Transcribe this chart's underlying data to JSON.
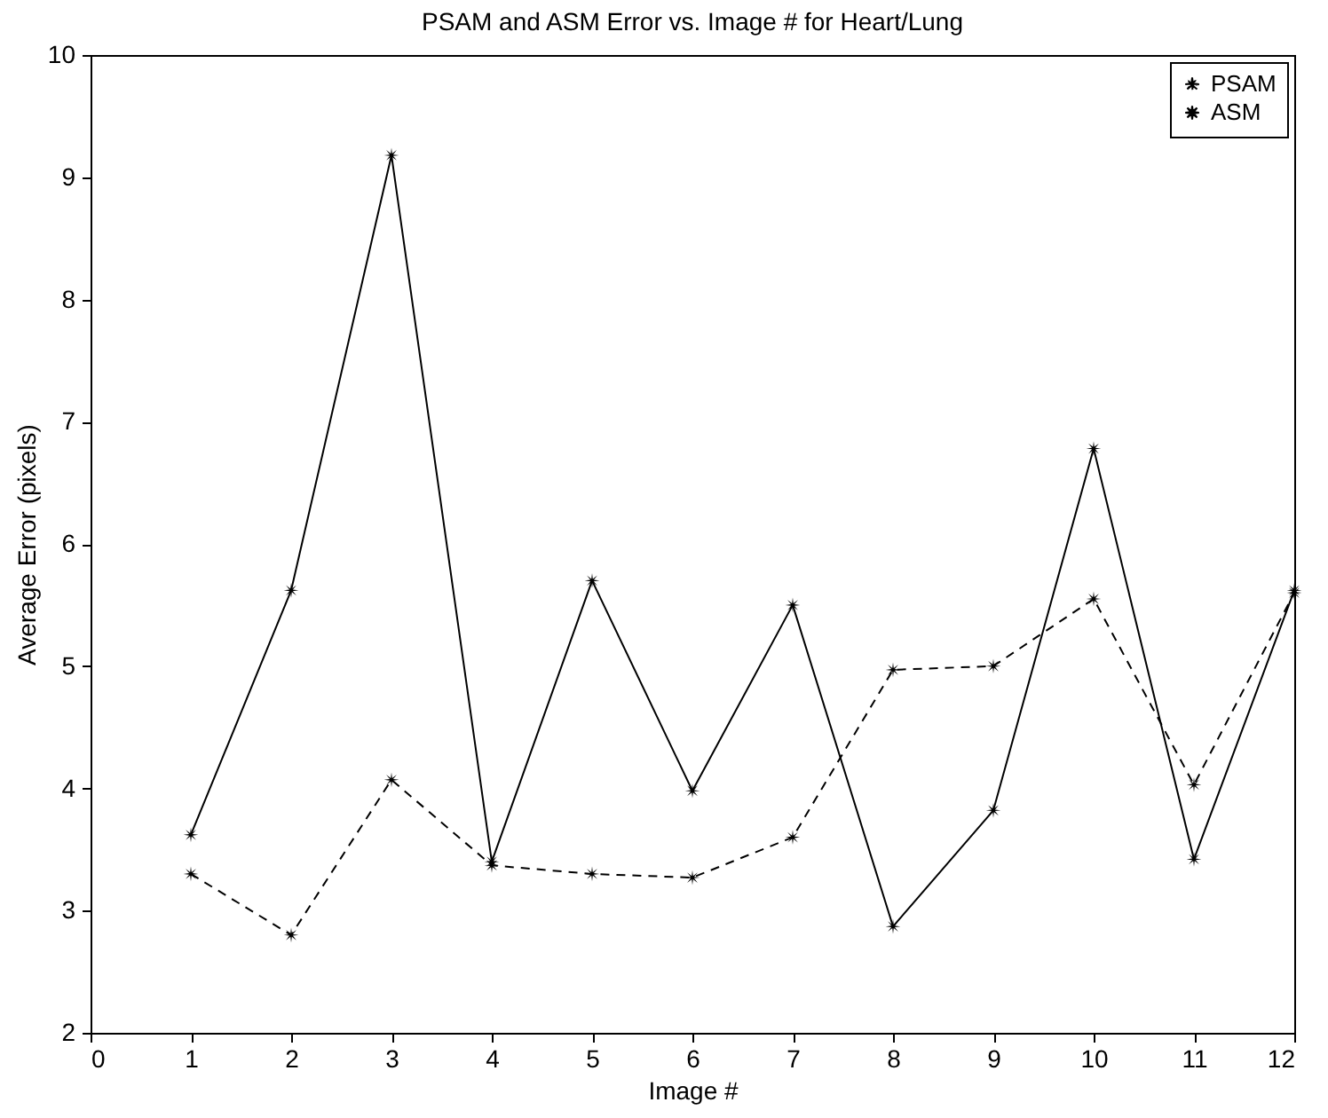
{
  "chart_data": {
    "type": "line",
    "title": "PSAM and ASM Error vs. Image # for Heart/Lung",
    "xlabel": "Image #",
    "ylabel": "Average Error (pixels)",
    "x": [
      1,
      2,
      3,
      4,
      5,
      6,
      7,
      8,
      9,
      10,
      11,
      12
    ],
    "series": [
      {
        "name": "PSAM",
        "color": "#000000",
        "line_style": "dashed",
        "values": [
          3.3,
          2.8,
          4.07,
          3.37,
          3.3,
          3.27,
          3.6,
          4.97,
          5.0,
          5.55,
          4.03,
          5.6
        ]
      },
      {
        "name": "ASM",
        "color": "#000000",
        "line_style": "solid",
        "values": [
          3.62,
          5.62,
          9.18,
          3.4,
          5.7,
          3.98,
          5.5,
          2.87,
          3.82,
          6.78,
          3.42,
          5.62
        ]
      }
    ],
    "xlim": [
      0,
      12
    ],
    "xticks": [
      0,
      1,
      2,
      3,
      4,
      5,
      6,
      7,
      8,
      9,
      10,
      11,
      12
    ],
    "ylim": [
      2,
      10
    ],
    "yticks": [
      2,
      3,
      4,
      5,
      6,
      7,
      8,
      9,
      10
    ],
    "grid": false,
    "legend": "top right",
    "marker": "star"
  }
}
